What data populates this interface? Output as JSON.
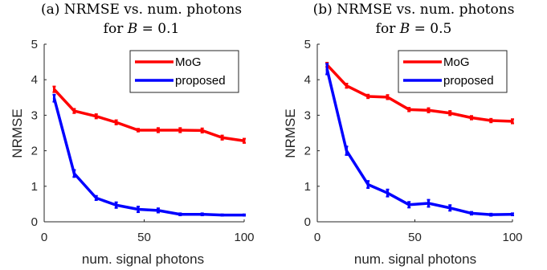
{
  "chart_data": [
    {
      "type": "line",
      "title": [
        "(a) NRMSE vs. num. photons",
        "for B = 0.1"
      ],
      "xlabel": "num. signal photons",
      "ylabel": "NRMSE",
      "xlim": [
        0,
        100
      ],
      "ylim": [
        0,
        5
      ],
      "xticks": [
        0,
        50,
        100
      ],
      "yticks": [
        0,
        1,
        2,
        3,
        4,
        5
      ],
      "grid": false,
      "legend_position": "top-right",
      "x": [
        5,
        15,
        26,
        36,
        47,
        57,
        68,
        79,
        89,
        100
      ],
      "series": [
        {
          "name": "MoG",
          "color": "#ff0000",
          "values": [
            3.73,
            3.12,
            2.97,
            2.8,
            2.58,
            2.58,
            2.58,
            2.57,
            2.37,
            2.28
          ],
          "errors": [
            0.08,
            0.06,
            0.06,
            0.06,
            0.04,
            0.06,
            0.06,
            0.06,
            0.06,
            0.06
          ]
        },
        {
          "name": "proposed",
          "color": "#0000ff",
          "values": [
            3.48,
            1.36,
            0.67,
            0.47,
            0.35,
            0.32,
            0.21,
            0.21,
            0.19,
            0.19
          ],
          "errors": [
            0.1,
            0.1,
            0.06,
            0.08,
            0.08,
            0.06,
            0.03,
            0.03,
            0.02,
            0.02
          ]
        }
      ]
    },
    {
      "type": "line",
      "title": [
        "(b) NRMSE vs. num. photons",
        "for B = 0.5"
      ],
      "xlabel": "num. signal photons",
      "ylabel": "NRMSE",
      "xlim": [
        0,
        100
      ],
      "ylim": [
        0,
        5
      ],
      "xticks": [
        0,
        50,
        100
      ],
      "yticks": [
        0,
        1,
        2,
        3,
        4,
        5
      ],
      "grid": false,
      "legend_position": "top-right",
      "x": [
        5,
        15,
        26,
        36,
        47,
        57,
        68,
        79,
        89,
        100
      ],
      "series": [
        {
          "name": "MoG",
          "color": "#ff0000",
          "values": [
            4.42,
            3.83,
            3.53,
            3.51,
            3.16,
            3.14,
            3.06,
            2.93,
            2.85,
            2.83
          ],
          "errors": [
            0.06,
            0.06,
            0.05,
            0.06,
            0.05,
            0.06,
            0.06,
            0.05,
            0.05,
            0.06
          ]
        },
        {
          "name": "proposed",
          "color": "#0000ff",
          "values": [
            4.3,
            2.0,
            1.05,
            0.81,
            0.48,
            0.52,
            0.39,
            0.24,
            0.2,
            0.21
          ],
          "errors": [
            0.15,
            0.12,
            0.1,
            0.1,
            0.08,
            0.1,
            0.08,
            0.04,
            0.03,
            0.03
          ]
        }
      ]
    }
  ]
}
